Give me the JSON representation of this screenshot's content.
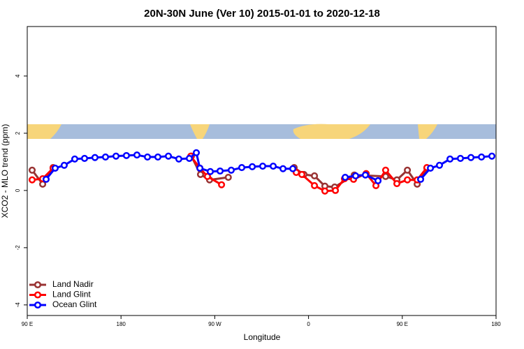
{
  "chart_data": {
    "type": "line",
    "title": "20N-30N June (Ver 10)   2015-01-01 to 2020-12-18",
    "x_label": "Longitude",
    "y_label": "XCO2 - MLO trend (ppm)",
    "xlim": [
      90,
      540
    ],
    "ylim": [
      -4.37,
      5.73
    ],
    "xticks": [
      {
        "value": 90,
        "label": "90 E"
      },
      180,
      {
        "value": 270,
        "label": "90 W"
      },
      {
        "value": 360,
        "label": "0"
      },
      {
        "value": 450,
        "label": "90 E"
      },
      {
        "value": 540,
        "label": "180"
      }
    ],
    "yticks": [
      -4,
      -2,
      0,
      2,
      4
    ],
    "legend": "bottom-left",
    "series": [
      {
        "name": "Land Nadir",
        "color": "#993333",
        "x": [
          94.7,
          104.8,
          114.8,
          null,
          247.6,
          256.3,
          265,
          283,
          null,
          346.2,
          355.6,
          365.7,
          375.7,
          385.1,
          403.9,
          434,
          444.8,
          454.9,
          464.3,
          473.6
        ],
        "values": [
          0.71,
          0.22,
          0.8,
          null,
          1.2,
          0.56,
          0.37,
          0.46,
          null,
          0.8,
          0.56,
          0.51,
          0.15,
          0.12,
          0.54,
          0.49,
          0.37,
          0.71,
          0.22,
          0.78
        ]
      },
      {
        "name": "Land Glint",
        "color": "#ff0000",
        "x": [
          94.7,
          104.8,
          114.8,
          null,
          247,
          255.7,
          263,
          276.5,
          null,
          348.2,
          353.6,
          365.7,
          375.7,
          385.8,
          394.5,
          403.2,
          415.3,
          424.7,
          434,
          444.8,
          454.9,
          464.3,
          473.6
        ],
        "values": [
          0.37,
          0.41,
          0.78,
          null,
          1.2,
          0.78,
          0.49,
          0.2,
          null,
          0.63,
          0.56,
          0.17,
          -0.02,
          0,
          0.41,
          0.39,
          0.59,
          0.17,
          0.71,
          0.24,
          0.37,
          0.37,
          0.8
        ]
      },
      {
        "name": "Ocean Glint",
        "color": "#0000ff",
        "x": [
          108.1,
          116.8,
          125.5,
          135.6,
          145,
          155,
          165.1,
          175.2,
          185.2,
          195.3,
          205.4,
          215.4,
          225.5,
          235.5,
          245.6,
          252.3,
          255.7,
          265.7,
          275.1,
          285.8,
          295.9,
          306,
          316,
          326.1,
          335.5,
          344.9,
          null,
          395.2,
          405.2,
          414.6,
          426.7,
          null,
          467.6,
          477,
          485.7,
          495.8,
          505.8,
          515.9,
          526,
          536
        ],
        "values": [
          0.39,
          0.78,
          0.88,
          1.1,
          1.12,
          1.15,
          1.17,
          1.2,
          1.22,
          1.24,
          1.17,
          1.17,
          1.2,
          1.1,
          1.12,
          1.32,
          0.78,
          0.66,
          0.68,
          0.71,
          0.8,
          0.83,
          0.85,
          0.85,
          0.76,
          0.76,
          null,
          0.46,
          0.51,
          0.54,
          0.34,
          null,
          0.39,
          0.78,
          0.88,
          1.1,
          1.12,
          1.15,
          1.17,
          1.2
        ]
      }
    ]
  }
}
